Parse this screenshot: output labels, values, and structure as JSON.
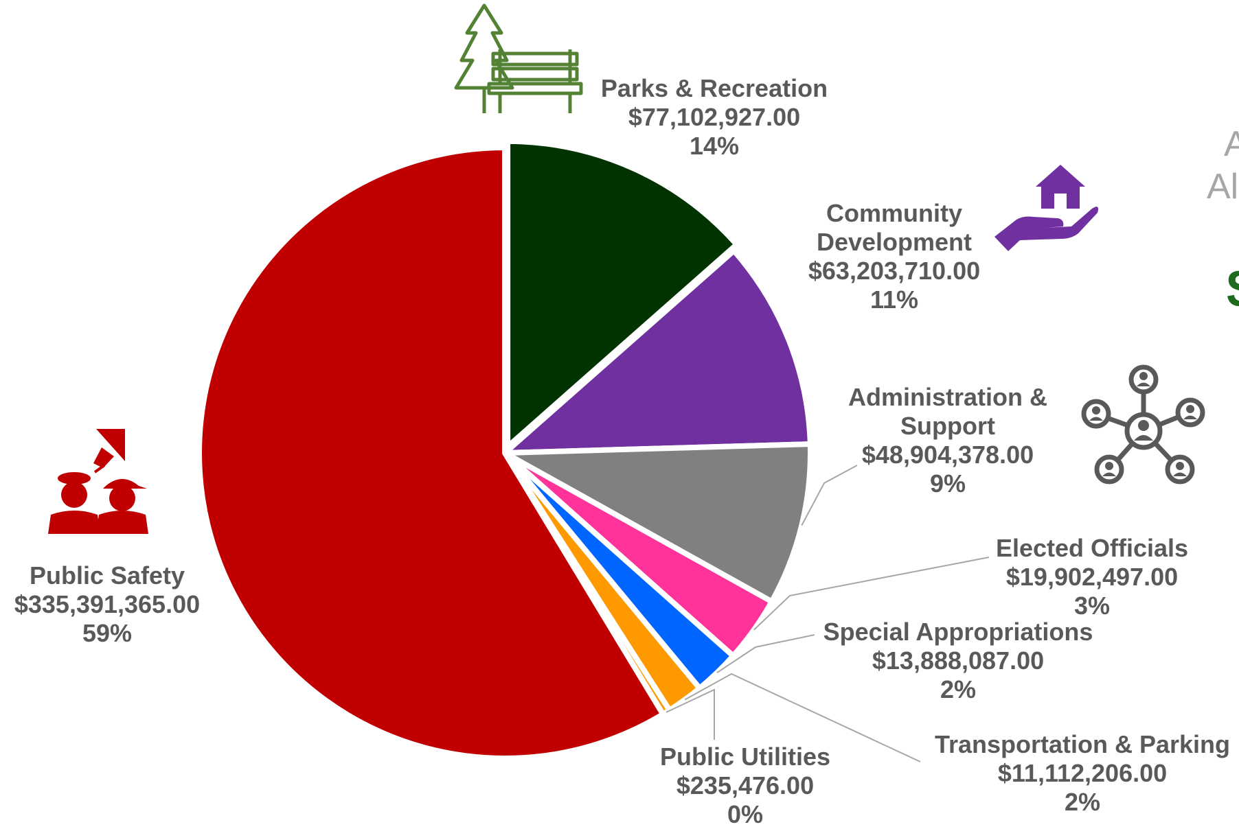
{
  "chart_data": {
    "type": "pie",
    "slices": [
      {
        "name": "Parks & Recreation",
        "value": 77102927.0,
        "amount_label": "$77,102,927.00",
        "percent_label": "14%",
        "color": "#003300",
        "icon": "tree-bench-icon"
      },
      {
        "name": "Community Development",
        "value": 63203710.0,
        "amount_label": "$63,203,710.00",
        "percent_label": "11%",
        "color": "#7030a0",
        "icon": "house-in-hand-icon"
      },
      {
        "name": "Administration & Support",
        "value": 48904378.0,
        "amount_label": "$48,904,378.00",
        "percent_label": "9%",
        "color": "#808080",
        "icon": "people-network-icon"
      },
      {
        "name": "Elected Officials",
        "value": 19902497.0,
        "amount_label": "$19,902,497.00",
        "percent_label": "3%",
        "color": "#ff3399"
      },
      {
        "name": "Special Appropriations",
        "value": 13888087.0,
        "amount_label": "$13,888,087.00",
        "percent_label": "2%",
        "color": "#0066ff"
      },
      {
        "name": "Transportation & Parking",
        "value": 11112206.0,
        "amount_label": "$11,112,206.00",
        "percent_label": "2%",
        "color": "#ff9900"
      },
      {
        "name": "Public Utilities",
        "value": 235476.0,
        "amount_label": "$235,476.00",
        "percent_label": "0%",
        "color": "#ff9900"
      },
      {
        "name": "Public Safety",
        "value": 335391365.0,
        "amount_label": "$335,391,365.00",
        "percent_label": "59%",
        "color": "#c00000",
        "icon": "police-firefighter-icon"
      }
    ],
    "label_color": "#595959"
  },
  "side_text": {
    "line1": "A",
    "line2": "Al",
    "line3": "$"
  },
  "icon_colors": {
    "parks": "#548235",
    "community": "#7030a0",
    "admin": "#595959",
    "safety": "#c00000"
  }
}
